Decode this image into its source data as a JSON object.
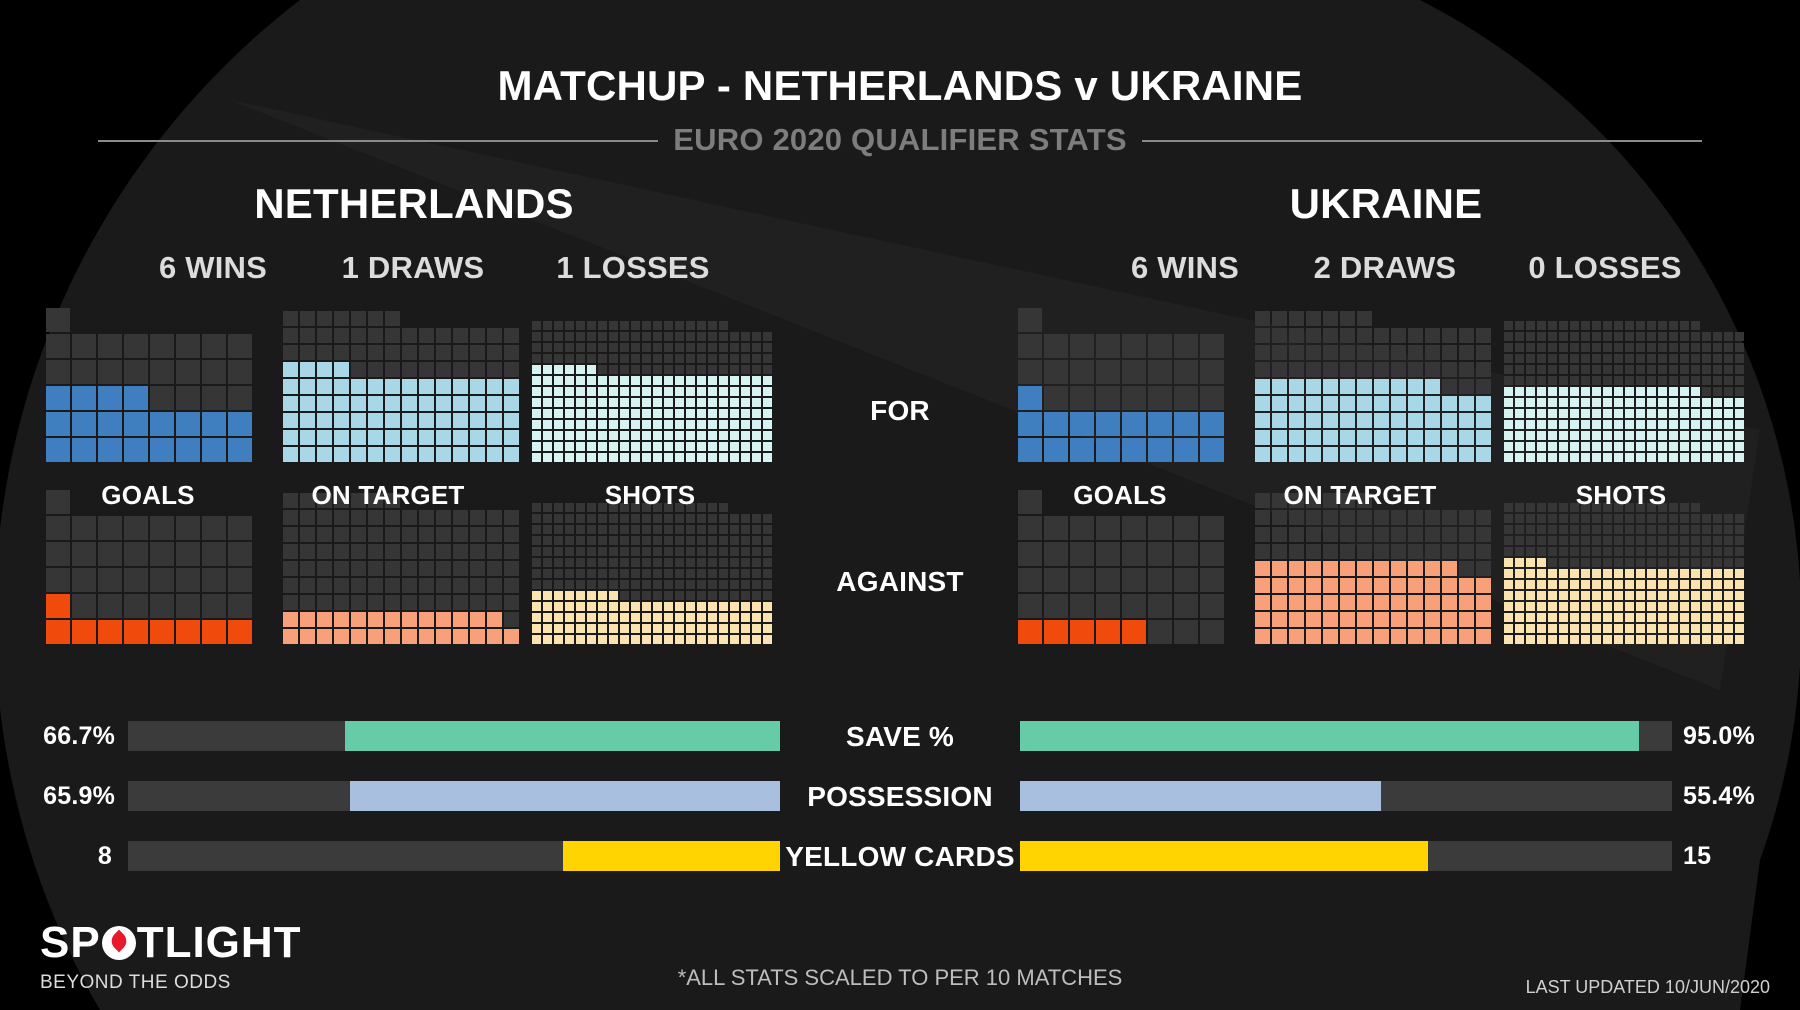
{
  "header": {
    "title": "MATCHUP - NETHERLANDS v UKRAINE",
    "subtitle": "EURO 2020 QUALIFIER STATS"
  },
  "teams": [
    {
      "name": "NETHERLANDS",
      "wins": "6 WINS",
      "draws": "1 DRAWS",
      "losses": "1 LOSSES"
    },
    {
      "name": "UKRAINE",
      "wins": "6 WINS",
      "draws": "2 DRAWS",
      "losses": "0 LOSSES"
    }
  ],
  "labels": {
    "goals": "GOALS",
    "on_target": "ON TARGET",
    "shots": "SHOTS",
    "for": "FOR",
    "against": "AGAINST",
    "save": "SAVE %",
    "possession": "POSSESSION",
    "yellow": "YELLOW CARDS"
  },
  "colors": {
    "goals_for": "#3f7fbf",
    "on_target_for": "#a8d7e8",
    "shots_for": "#d6f3f2",
    "goals_against": "#f04a0c",
    "on_target_against": "#f7a07a",
    "shots_against": "#fbe3b0",
    "empty_cell": "#363636",
    "save": "#66cca8",
    "possession": "#a8bfe0",
    "yellow": "#ffd400",
    "bar_bg": "#3b3b3b"
  },
  "chart_data": [
    {
      "type": "waffle",
      "team": "NETHERLANDS",
      "panels": [
        {
          "stat": "GOALS",
          "row": "FOR",
          "value": 20.1,
          "capacity": 41
        },
        {
          "stat": "ON TARGET",
          "row": "FOR",
          "value": 74.4,
          "capacity": 119
        },
        {
          "stat": "SHOTS",
          "row": "FOR",
          "value": 182,
          "capacity": 282
        },
        {
          "stat": "GOALS",
          "row": "AGAINST",
          "value": 9,
          "capacity": 41
        },
        {
          "stat": "ON TARGET",
          "row": "AGAINST",
          "value": 26.6,
          "capacity": 119
        },
        {
          "stat": "SHOTS",
          "row": "AGAINST",
          "value": 96,
          "capacity": 282
        }
      ]
    },
    {
      "type": "waffle",
      "team": "UKRAINE",
      "panels": [
        {
          "stat": "GOALS",
          "row": "FOR",
          "value": 17,
          "capacity": 41
        },
        {
          "stat": "ON TARGET",
          "row": "FOR",
          "value": 67,
          "capacity": 119
        },
        {
          "stat": "SHOTS",
          "row": "FOR",
          "value": 150,
          "capacity": 282
        },
        {
          "stat": "GOALS",
          "row": "AGAINST",
          "value": 5,
          "capacity": 41
        },
        {
          "stat": "ON TARGET",
          "row": "AGAINST",
          "value": 68,
          "capacity": 119
        },
        {
          "stat": "SHOTS",
          "row": "AGAINST",
          "value": 158,
          "capacity": 282
        }
      ]
    },
    {
      "type": "bar",
      "categories": [
        "SAVE %",
        "POSSESSION",
        "YELLOW CARDS"
      ],
      "max": [
        100,
        100,
        24
      ],
      "series": [
        {
          "name": "NETHERLANDS",
          "values": [
            66.7,
            65.9,
            8
          ],
          "labels": [
            "66.7%",
            "65.9%",
            "8"
          ]
        },
        {
          "name": "UKRAINE",
          "values": [
            95.0,
            55.4,
            15
          ],
          "labels": [
            "95.0%",
            "55.4%",
            "15"
          ]
        }
      ]
    }
  ],
  "footer": {
    "logo": "SPOTLIGHT",
    "logo_left": "SP",
    "logo_right": "TLIGHT",
    "tagline": "BEYOND THE ODDS",
    "note": "*ALL STATS SCALED TO PER 10 MATCHES",
    "updated": "LAST UPDATED 10/JUN/2020"
  }
}
